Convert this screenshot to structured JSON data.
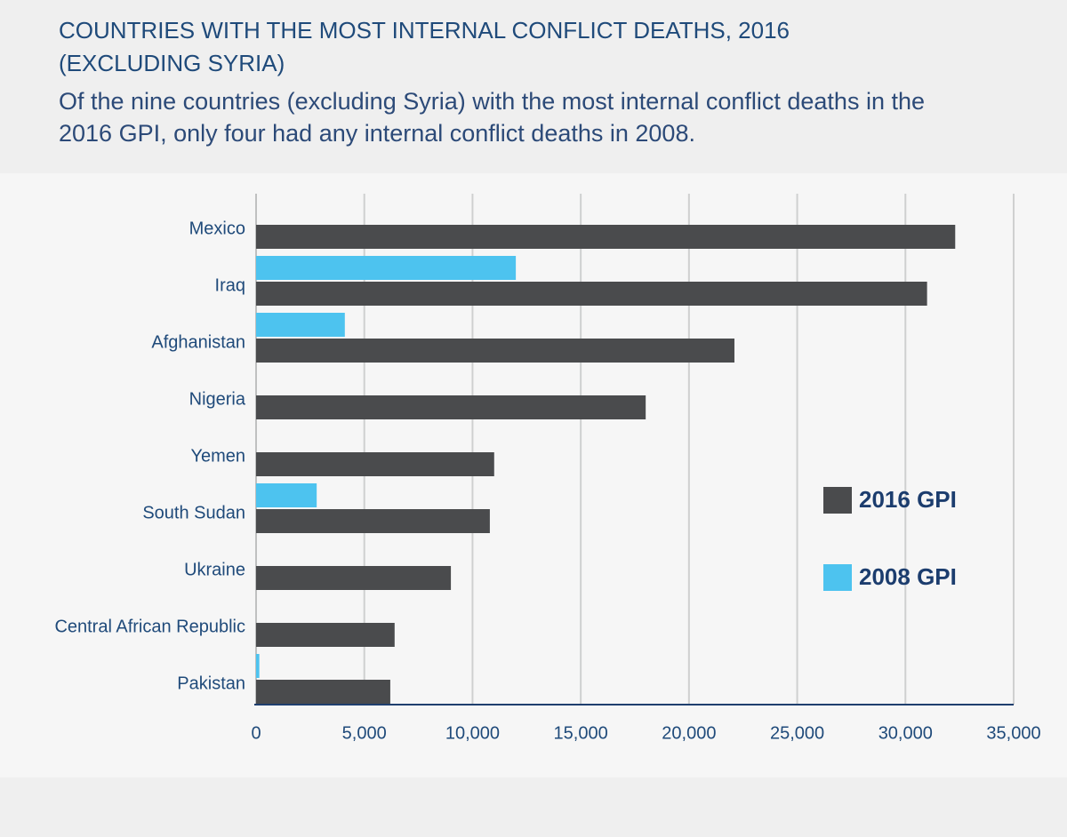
{
  "chart_data": {
    "type": "hbar",
    "title": [
      "COUNTRIES WITH THE MOST INTERNAL CONFLICT DEATHS, 2016",
      "(EXCLUDING SYRIA)"
    ],
    "subtitle": [
      "Of the nine countries (excluding Syria) with the most internal conflict deaths in the",
      "2016 GPI, only four had any internal conflict deaths in 2008."
    ],
    "categories": [
      "Mexico",
      "Iraq",
      "Afghanistan",
      "Nigeria",
      "Yemen",
      "South Sudan",
      "Ukraine",
      "Central African Republic",
      "Pakistan"
    ],
    "series": [
      {
        "name": "2016 GPI",
        "color": "#4a4b4d",
        "values": [
          32300,
          31000,
          22100,
          18000,
          11000,
          10800,
          9000,
          6400,
          6200
        ]
      },
      {
        "name": "2008 GPI",
        "color": "#4dc3ef",
        "values": [
          0,
          12000,
          4100,
          0,
          0,
          2800,
          0,
          0,
          150
        ]
      }
    ],
    "xlim": [
      0,
      35000
    ],
    "xticks": [
      0,
      {
        "value": 5000,
        "label": "5,000"
      },
      {
        "value": 10000,
        "label": "10,000"
      },
      {
        "value": 15000,
        "label": "15,000"
      },
      {
        "value": 20000,
        "label": "20,000"
      },
      {
        "value": 25000,
        "label": "25,000"
      },
      {
        "value": 30000,
        "label": "30,000"
      },
      {
        "value": 35000,
        "label": "35,000"
      }
    ],
    "grid": true,
    "legend": "right"
  }
}
